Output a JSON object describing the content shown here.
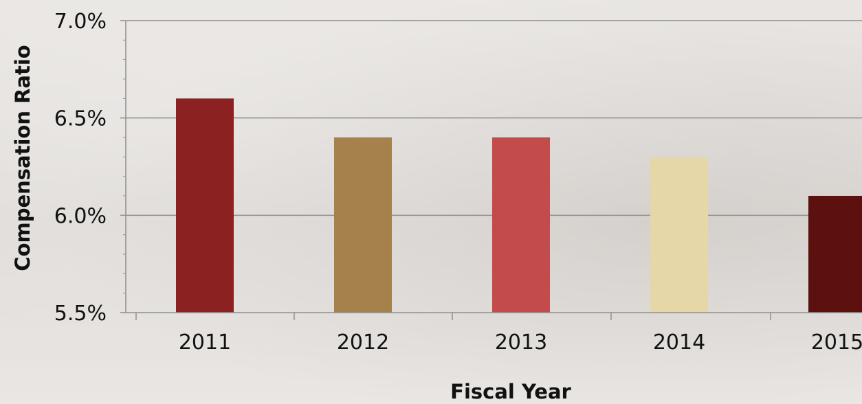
{
  "chart_data": {
    "type": "bar",
    "title": "",
    "xlabel": "Fiscal Year",
    "ylabel": "Compensation Ratio",
    "categories": [
      "2011",
      "2012",
      "2013",
      "2014",
      "2015"
    ],
    "values": [
      6.6,
      6.4,
      6.4,
      6.3,
      6.1
    ],
    "value_unit": "%",
    "ylim": [
      5.5,
      7.0
    ],
    "yticks": [
      5.5,
      6.0,
      6.5,
      7.0
    ],
    "ytick_labels": [
      "5.5%",
      "6.0%",
      "6.5%",
      "7.0%"
    ],
    "grid": true,
    "legend": "none",
    "bar_colors": [
      "#8b2121",
      "#a6814b",
      "#c44b4b",
      "#e6d7a8",
      "#5c110e"
    ],
    "gridline_color": "#8f8f8f",
    "axis_color": "#8f8f8f"
  }
}
